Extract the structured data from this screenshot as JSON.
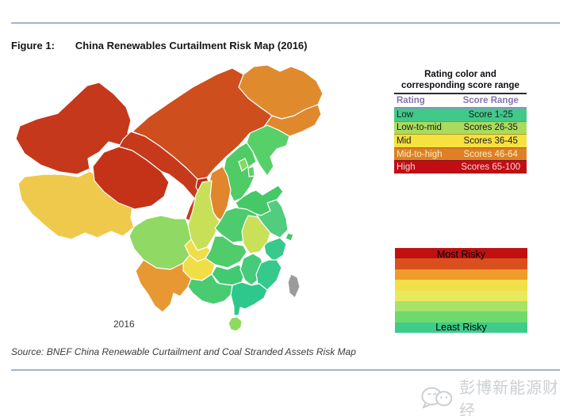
{
  "page": {
    "figure_label": "Figure 1:",
    "figure_title": "China Renewables Curtailment Risk Map (2016)",
    "map_year_label": "2016",
    "source_text": "Source: BNEF China Renewable Curtailment and Coal Stranded Assets Risk Map",
    "watermark_text": "彭博新能源财经"
  },
  "legend_table": {
    "title_line1": "Rating color and",
    "title_line2": "corresponding score range",
    "headers": {
      "rating": "Rating",
      "score_range": "Score Range"
    },
    "header_text_color": "#8374B0",
    "rows": [
      {
        "rating": "Low",
        "score_range": "Score 1-25",
        "color": "#41C98A",
        "text_color": "#1a1a1a"
      },
      {
        "rating": "Low-to-mid",
        "score_range": "Scores 26-35",
        "color": "#A9DC5D",
        "text_color": "#1a1a1a"
      },
      {
        "rating": "Mid",
        "score_range": "Scores 36-45",
        "color": "#F6E13E",
        "text_color": "#1a1a1a"
      },
      {
        "rating": "Mid-to-high",
        "score_range": "Scores 46-64",
        "color": "#DF8027",
        "text_color": "#F7EFC0"
      },
      {
        "rating": "High",
        "score_range": "Scores 65-100",
        "color": "#C00E14",
        "text_color": "#F8D7CF"
      }
    ]
  },
  "risk_scale": {
    "top_label": "Most Risky",
    "bottom_label": "Least Risky",
    "bands": [
      "#C01010",
      "#D94F1E",
      "#F09C2A",
      "#F1E049",
      "#E9E95C",
      "#A8E266",
      "#6FD96E",
      "#3ECC8C"
    ]
  },
  "map": {
    "boundary_color": "#FFFFFF",
    "provinces": [
      {
        "id": "xinjiang",
        "name": "Xinjiang",
        "color": "#C5381B"
      },
      {
        "id": "tibet",
        "name": "Tibet",
        "color": "#EFC94B"
      },
      {
        "id": "qinghai",
        "name": "Qinghai",
        "color": "#C43318"
      },
      {
        "id": "gansu",
        "name": "Gansu",
        "color": "#C6391B"
      },
      {
        "id": "ningxia",
        "name": "Ningxia",
        "color": "#BC2F14"
      },
      {
        "id": "inner-mongolia",
        "name": "Inner Mongolia",
        "color": "#CE4E1D"
      },
      {
        "id": "heilongjiang",
        "name": "Heilongjiang",
        "color": "#E08A2E"
      },
      {
        "id": "jilin",
        "name": "Jilin",
        "color": "#DF882C"
      },
      {
        "id": "liaoning",
        "name": "Liaoning",
        "color": "#58D06A"
      },
      {
        "id": "hebei",
        "name": "Hebei",
        "color": "#4FCC66"
      },
      {
        "id": "beijing",
        "name": "Beijing",
        "color": "#84D95E"
      },
      {
        "id": "tianjin",
        "name": "Tianjin",
        "color": "#5ED06C"
      },
      {
        "id": "shanxi",
        "name": "Shanxi",
        "color": "#E1862C"
      },
      {
        "id": "shaanxi",
        "name": "Shaanxi",
        "color": "#C8E058"
      },
      {
        "id": "shandong",
        "name": "Shandong",
        "color": "#45C868"
      },
      {
        "id": "henan",
        "name": "Henan",
        "color": "#4ECB6F"
      },
      {
        "id": "jiangsu",
        "name": "Jiangsu",
        "color": "#52CC7E"
      },
      {
        "id": "shanghai",
        "name": "Shanghai",
        "color": "#45C868"
      },
      {
        "id": "anhui",
        "name": "Anhui",
        "color": "#C9E058"
      },
      {
        "id": "hubei",
        "name": "Hubei",
        "color": "#50CC6B"
      },
      {
        "id": "chongqing",
        "name": "Chongqing",
        "color": "#F1DD48"
      },
      {
        "id": "sichuan",
        "name": "Sichuan",
        "color": "#8FD964"
      },
      {
        "id": "guizhou",
        "name": "Guizhou",
        "color": "#F1DD48"
      },
      {
        "id": "yunnan",
        "name": "Yunnan",
        "color": "#E89833"
      },
      {
        "id": "hunan",
        "name": "Hunan",
        "color": "#41CA73"
      },
      {
        "id": "jiangxi",
        "name": "Jiangxi",
        "color": "#45CB79"
      },
      {
        "id": "zhejiang",
        "name": "Zhejiang",
        "color": "#38C98C"
      },
      {
        "id": "fujian",
        "name": "Fujian",
        "color": "#35C98B"
      },
      {
        "id": "guangdong",
        "name": "Guangdong",
        "color": "#2EC88C"
      },
      {
        "id": "guangxi",
        "name": "Guangxi",
        "color": "#49CB72"
      },
      {
        "id": "hainan",
        "name": "Hainan",
        "color": "#8CDB5C"
      },
      {
        "id": "taiwan",
        "name": "Taiwan",
        "color": "#9B9B9B"
      }
    ]
  }
}
